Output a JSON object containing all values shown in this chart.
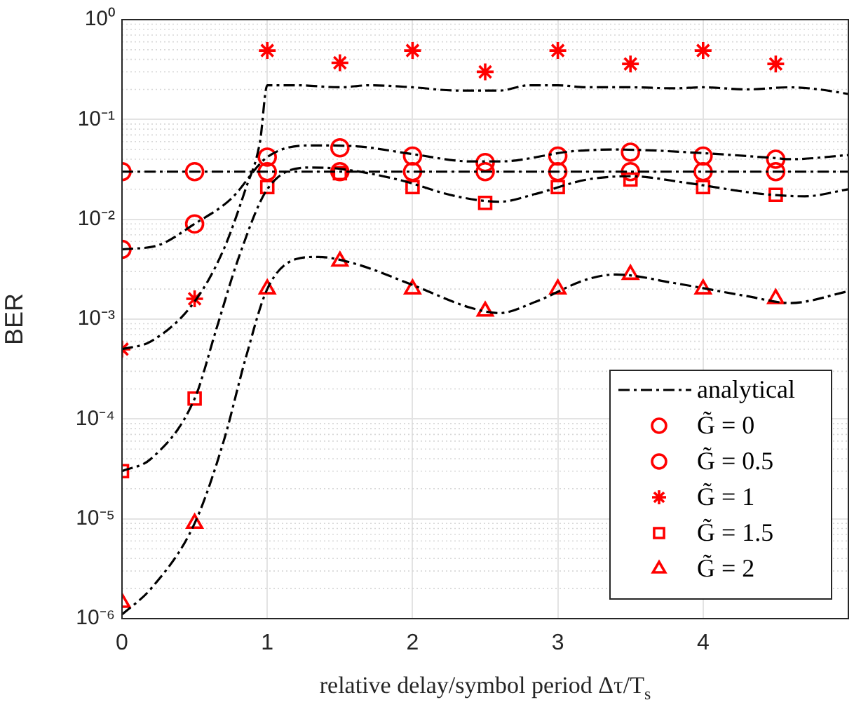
{
  "chart_data": {
    "type": "line",
    "xlabel": "relative delay/symbol period Δτ/T$_{s}$",
    "ylabel": "BER",
    "xlim": [
      0,
      5
    ],
    "xticks": [
      0,
      1,
      2,
      3,
      4
    ],
    "ylim": [
      1e-06,
      1
    ],
    "log": "y",
    "yticks": [
      {
        "value": 1e-06,
        "label": "10⁻⁶"
      },
      {
        "value": 1e-05,
        "label": "10⁻⁵"
      },
      {
        "value": 0.0001,
        "label": "10⁻⁴"
      },
      {
        "value": 0.001,
        "label": "10⁻³"
      },
      {
        "value": 0.01,
        "label": "10⁻²"
      },
      {
        "value": 0.1,
        "label": "10⁻¹"
      },
      {
        "value": 1,
        "label": "10⁰"
      }
    ],
    "grid": true,
    "legend": "bottom right",
    "line_style": "dashed",
    "series": [
      {
        "name": "analytical",
        "color": "#000000",
        "marker": "none",
        "x": [
          0,
          5
        ],
        "values": [
          0.03,
          0.03
        ]
      },
      {
        "color": "#000000",
        "marker": "none",
        "x": [
          0,
          0.25,
          0.5,
          0.75,
          1,
          1.3,
          1.6,
          2,
          2.4,
          2.6,
          3.1,
          3.4,
          4,
          4.5,
          4.6,
          5
        ],
        "values": [
          0.005,
          0.0055,
          0.009,
          0.016,
          0.042,
          0.055,
          0.054,
          0.045,
          0.038,
          0.038,
          0.048,
          0.05,
          0.046,
          0.041,
          0.04,
          0.044
        ]
      },
      {
        "color": "#000000",
        "marker": "none",
        "x": [
          0,
          0.2,
          0.5,
          0.7,
          0.85,
          0.95,
          1,
          1.2,
          1.5,
          1.7,
          2,
          2.3,
          2.6,
          2.8,
          3,
          3.2,
          3.5,
          3.8,
          4,
          4.3,
          4.6,
          4.8,
          5
        ],
        "values": [
          0.0005,
          0.0006,
          0.0015,
          0.005,
          0.02,
          0.06,
          0.22,
          0.22,
          0.21,
          0.22,
          0.21,
          0.195,
          0.195,
          0.22,
          0.22,
          0.21,
          0.21,
          0.205,
          0.21,
          0.2,
          0.21,
          0.2,
          0.18
        ]
      },
      {
        "color": "#000000",
        "marker": "none",
        "x": [
          0,
          0.2,
          0.5,
          0.65,
          0.8,
          1,
          1.3,
          1.5,
          1.9,
          2.3,
          2.6,
          2.85,
          3.2,
          3.5,
          3.9,
          4.4,
          4.7,
          5
        ],
        "values": [
          3e-05,
          4e-05,
          0.00016,
          0.0008,
          0.004,
          0.02,
          0.033,
          0.032,
          0.025,
          0.017,
          0.015,
          0.018,
          0.025,
          0.027,
          0.023,
          0.018,
          0.017,
          0.02
        ]
      },
      {
        "color": "#000000",
        "marker": "none",
        "x": [
          0,
          0.2,
          0.5,
          0.7,
          0.85,
          1,
          1.2,
          1.35,
          1.6,
          2,
          2.4,
          2.6,
          2.85,
          3.2,
          3.4,
          3.8,
          4.3,
          4.6,
          5
        ],
        "values": [
          1.1e-06,
          2e-06,
          9e-06,
          6e-05,
          0.0004,
          0.002,
          0.004,
          0.0042,
          0.0036,
          0.0022,
          0.0013,
          0.00115,
          0.0015,
          0.0025,
          0.0028,
          0.0023,
          0.0017,
          0.00145,
          0.0019
        ]
      },
      {
        "name": "G̃ = 0",
        "type": "scatter",
        "color": "#ff0000",
        "marker": "circle",
        "x": [
          0,
          0.5,
          1,
          1.5,
          2,
          2.5,
          3,
          3.5,
          4,
          4.5
        ],
        "values": [
          0.03,
          0.03,
          0.03,
          0.03,
          0.03,
          0.03,
          0.03,
          0.03,
          0.03,
          0.03
        ]
      },
      {
        "name": "G̃ = 0.5",
        "type": "scatter",
        "color": "#ff0000",
        "marker": "circle",
        "x": [
          0,
          0.5,
          1,
          1.5,
          2,
          2.5,
          3,
          3.5,
          4,
          4.5
        ],
        "values": [
          0.005,
          0.009,
          0.042,
          0.052,
          0.043,
          0.037,
          0.043,
          0.047,
          0.043,
          0.04
        ]
      },
      {
        "name": "G̃ = 1",
        "type": "scatter",
        "color": "#ff0000",
        "marker": "cross",
        "x": [
          0,
          0.5,
          1,
          1.5,
          2,
          2.5,
          3,
          3.5,
          4,
          4.5
        ],
        "values": [
          0.0005,
          0.0016,
          0.49,
          0.37,
          0.49,
          0.3,
          0.49,
          0.36,
          0.49,
          0.36
        ]
      },
      {
        "name": "G̃ = 1.5",
        "type": "scatter",
        "color": "#ff0000",
        "marker": "square",
        "x": [
          0,
          0.5,
          1,
          1.5,
          2,
          2.5,
          3,
          3.5,
          4,
          4.5
        ],
        "values": [
          3e-05,
          0.00016,
          0.021,
          0.029,
          0.021,
          0.0146,
          0.021,
          0.025,
          0.021,
          0.0176
        ]
      },
      {
        "name": "G̃ = 2",
        "type": "scatter",
        "color": "#ff0000",
        "marker": "triangle",
        "x": [
          0,
          0.5,
          1,
          1.5,
          2,
          2.5,
          3,
          3.5,
          4,
          4.5
        ],
        "values": [
          1.45e-06,
          9e-06,
          0.002,
          0.0038,
          0.002,
          0.0012,
          0.002,
          0.0028,
          0.002,
          0.0016
        ]
      }
    ]
  }
}
